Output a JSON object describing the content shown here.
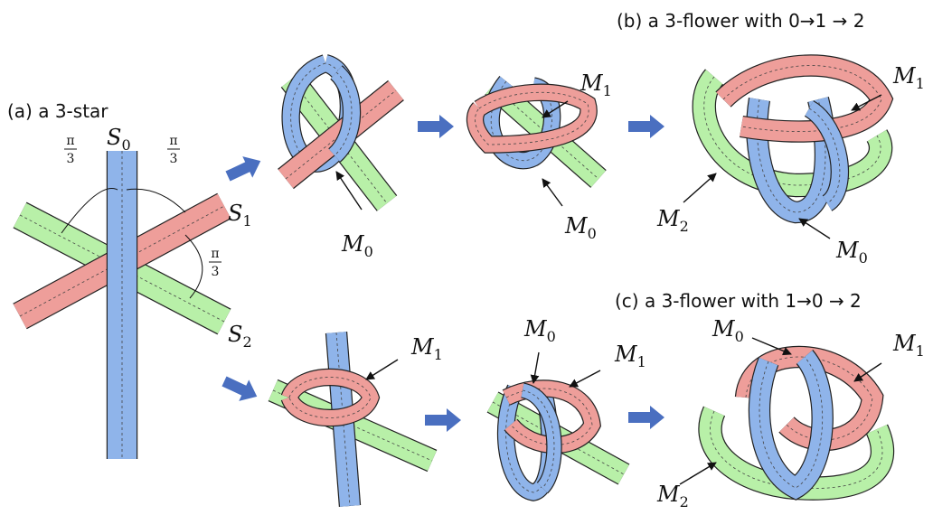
{
  "captions": {
    "a": "(a) a 3-star",
    "b": "(b) a 3-flower with 0→1 → 2",
    "c": "(c) a 3-flower with 1→0 → 2"
  },
  "star": {
    "strips": [
      {
        "base": "S",
        "sub": "0"
      },
      {
        "base": "S",
        "sub": "1"
      },
      {
        "base": "S",
        "sub": "2"
      }
    ],
    "angles": [
      {
        "num": "π",
        "den": "3"
      },
      {
        "num": "π",
        "den": "3"
      },
      {
        "num": "π",
        "den": "3"
      }
    ]
  },
  "top": {
    "knot": [
      {
        "base": "M",
        "sub": "0"
      }
    ],
    "twist": [
      {
        "base": "M",
        "sub": "1"
      },
      {
        "base": "M",
        "sub": "0"
      }
    ],
    "flower": [
      {
        "base": "M",
        "sub": "1"
      },
      {
        "base": "M",
        "sub": "2"
      },
      {
        "base": "M",
        "sub": "0"
      }
    ]
  },
  "bottom": {
    "knot": [
      {
        "base": "M",
        "sub": "1"
      }
    ],
    "twist": [
      {
        "base": "M",
        "sub": "0"
      },
      {
        "base": "M",
        "sub": "1"
      }
    ],
    "flower": [
      {
        "base": "M",
        "sub": "0"
      },
      {
        "base": "M",
        "sub": "1"
      },
      {
        "base": "M",
        "sub": "2"
      }
    ]
  }
}
